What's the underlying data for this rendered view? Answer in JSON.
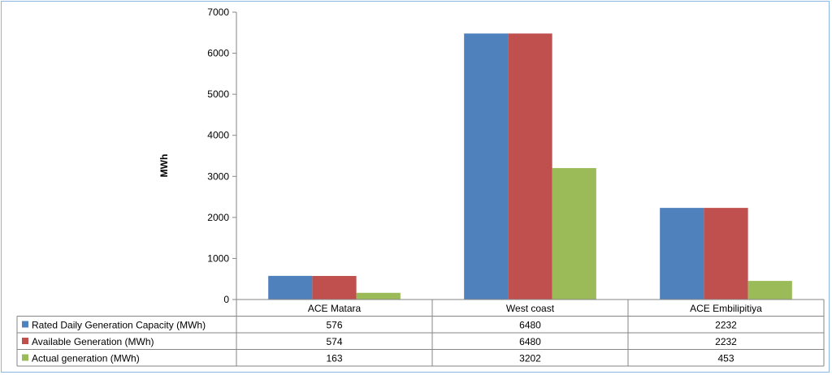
{
  "chart_data": {
    "type": "bar",
    "ylabel": "MWh",
    "ylim": [
      0,
      7000
    ],
    "yticks": [
      0,
      1000,
      2000,
      3000,
      4000,
      5000,
      6000,
      7000
    ],
    "categories": [
      "ACE Matara",
      "West coast",
      "ACE Embilipitiya"
    ],
    "legend": "data-table",
    "grid": false,
    "series": [
      {
        "name": "Rated Daily Generation Capacity (MWh)",
        "color": "#4f81bd",
        "values": [
          576,
          6480,
          2232
        ]
      },
      {
        "name": "Available Generation (MWh)",
        "color": "#c0504d",
        "values": [
          574,
          6480,
          2232
        ]
      },
      {
        "name": "Actual generation (MWh)",
        "color": "#9bbb59",
        "values": [
          163,
          3202,
          453
        ]
      }
    ]
  }
}
